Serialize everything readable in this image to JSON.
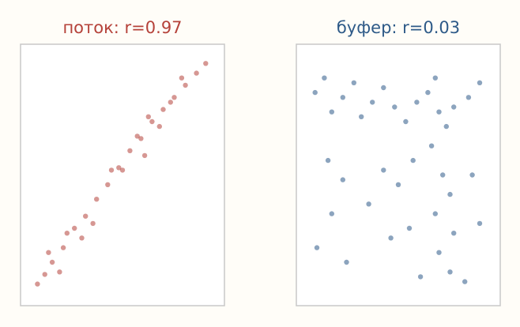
{
  "chart_data": [
    {
      "type": "scatter",
      "title": "поток: r=0.97",
      "color": "#b5423a",
      "axes_ticks": false,
      "grid": false,
      "xlim": [
        0,
        1
      ],
      "ylim": [
        0,
        1
      ],
      "points": [
        [
          0.04,
          0.05
        ],
        [
          0.08,
          0.09
        ],
        [
          0.12,
          0.14
        ],
        [
          0.18,
          0.2
        ],
        [
          0.24,
          0.28
        ],
        [
          0.3,
          0.33
        ],
        [
          0.36,
          0.4
        ],
        [
          0.42,
          0.46
        ],
        [
          0.48,
          0.53
        ],
        [
          0.54,
          0.6
        ],
        [
          0.6,
          0.65
        ],
        [
          0.66,
          0.72
        ],
        [
          0.72,
          0.77
        ],
        [
          0.78,
          0.82
        ],
        [
          0.84,
          0.87
        ],
        [
          0.9,
          0.92
        ],
        [
          0.95,
          0.96
        ],
        [
          0.2,
          0.26
        ],
        [
          0.28,
          0.24
        ],
        [
          0.5,
          0.52
        ],
        [
          0.58,
          0.66
        ],
        [
          0.7,
          0.7
        ],
        [
          0.76,
          0.8
        ],
        [
          0.64,
          0.74
        ],
        [
          0.1,
          0.18
        ],
        [
          0.16,
          0.1
        ],
        [
          0.34,
          0.3
        ],
        [
          0.44,
          0.52
        ],
        [
          0.62,
          0.58
        ],
        [
          0.82,
          0.9
        ]
      ]
    },
    {
      "type": "scatter",
      "title": "буфер: r=0.03",
      "color": "#2e5a88",
      "axes_ticks": false,
      "grid": false,
      "xlim": [
        0,
        1
      ],
      "ylim": [
        0,
        1
      ],
      "points": [
        [
          0.05,
          0.84
        ],
        [
          0.1,
          0.9
        ],
        [
          0.14,
          0.76
        ],
        [
          0.2,
          0.82
        ],
        [
          0.26,
          0.88
        ],
        [
          0.3,
          0.74
        ],
        [
          0.36,
          0.8
        ],
        [
          0.42,
          0.86
        ],
        [
          0.48,
          0.78
        ],
        [
          0.54,
          0.72
        ],
        [
          0.6,
          0.8
        ],
        [
          0.66,
          0.84
        ],
        [
          0.72,
          0.76
        ],
        [
          0.8,
          0.78
        ],
        [
          0.88,
          0.82
        ],
        [
          0.94,
          0.88
        ],
        [
          0.7,
          0.9
        ],
        [
          0.76,
          0.7
        ],
        [
          0.68,
          0.62
        ],
        [
          0.74,
          0.5
        ],
        [
          0.78,
          0.42
        ],
        [
          0.7,
          0.34
        ],
        [
          0.8,
          0.26
        ],
        [
          0.72,
          0.18
        ],
        [
          0.78,
          0.1
        ],
        [
          0.62,
          0.08
        ],
        [
          0.56,
          0.28
        ],
        [
          0.5,
          0.46
        ],
        [
          0.42,
          0.52
        ],
        [
          0.34,
          0.38
        ],
        [
          0.2,
          0.48
        ],
        [
          0.14,
          0.34
        ],
        [
          0.06,
          0.2
        ],
        [
          0.22,
          0.14
        ],
        [
          0.12,
          0.56
        ],
        [
          0.9,
          0.5
        ],
        [
          0.94,
          0.3
        ],
        [
          0.86,
          0.06
        ],
        [
          0.58,
          0.56
        ],
        [
          0.46,
          0.24
        ]
      ]
    }
  ]
}
